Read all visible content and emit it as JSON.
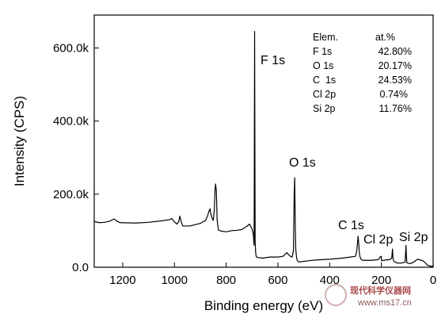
{
  "chart_data": {
    "type": "line",
    "title": "",
    "xlabel": "Binding energy (eV)",
    "ylabel": "Intensity (CPS)",
    "xlim": [
      1310,
      0
    ],
    "ylim": [
      0,
      690000
    ],
    "x_reversed": true,
    "x_ticks": [
      1200,
      1000,
      800,
      600,
      400,
      200,
      0
    ],
    "y_ticks": [
      0,
      200000,
      400000,
      600000
    ],
    "y_tick_labels": [
      "0.0",
      "200.0k",
      "400.0k",
      "600.0k"
    ],
    "grid": false,
    "series": [
      {
        "x": [
          1310,
          1290,
          1270,
          1250,
          1240,
          1232,
          1225,
          1210,
          1150,
          1100,
          1050,
          1020,
          1010,
          1004,
          1000,
          990,
          983,
          979,
          975,
          968,
          940,
          900,
          880,
          872,
          866,
          862,
          860,
          855,
          850,
          846,
          843,
          841,
          838,
          835,
          830,
          820,
          800,
          780,
          760,
          740,
          720,
          710,
          700,
          695,
          692,
          690,
          688,
          686,
          684,
          680,
          660,
          630,
          600,
          580,
          565,
          560,
          552,
          545,
          540,
          537,
          535,
          533,
          531,
          528,
          525,
          520,
          510,
          500,
          480,
          450,
          400,
          350,
          320,
          300,
          295,
          290,
          287,
          285,
          283,
          281,
          278,
          275,
          270,
          260,
          240,
          220,
          210,
          205,
          200,
          200,
          199,
          198,
          196,
          193,
          190,
          185,
          175,
          165,
          160,
          157,
          155,
          153,
          150,
          145,
          140,
          130,
          120,
          108,
          105,
          102,
          100,
          98,
          95,
          90,
          80,
          60,
          40,
          30,
          27,
          25,
          22,
          20,
          15,
          10,
          5,
          0
        ],
        "y": [
          125000,
          122000,
          123000,
          126000,
          130000,
          132000,
          127000,
          122000,
          121000,
          123000,
          127000,
          130000,
          133000,
          128000,
          124000,
          118000,
          125000,
          140000,
          128000,
          113000,
          113000,
          120000,
          128000,
          140000,
          155000,
          160000,
          148000,
          135000,
          128000,
          155000,
          210000,
          228000,
          210000,
          130000,
          102000,
          99000,
          97000,
          100000,
          101000,
          103000,
          112000,
          118000,
          105000,
          90000,
          60000,
          645000,
          70000,
          40000,
          30000,
          27000,
          25000,
          28000,
          28000,
          30000,
          40000,
          35000,
          30000,
          28000,
          45000,
          200000,
          245000,
          120000,
          50000,
          28000,
          18000,
          15000,
          15000,
          16000,
          18000,
          20000,
          22000,
          25000,
          28000,
          30000,
          45000,
          85000,
          60000,
          38000,
          30000,
          25000,
          22000,
          20000,
          19000,
          19000,
          19000,
          20000,
          22000,
          28000,
          30000,
          18000,
          18000,
          18000,
          18000,
          19000,
          19000,
          20000,
          20000,
          22000,
          25000,
          50000,
          25000,
          18000,
          15000,
          14000,
          12000,
          11000,
          12000,
          14000,
          60000,
          15000,
          12000,
          11000,
          11000,
          10000,
          12000,
          22000,
          18000,
          12000,
          10000,
          8000,
          6000,
          5000,
          4000,
          3000,
          3000,
          2000
        ]
      }
    ],
    "peak_labels": [
      {
        "text": "F 1s"
      },
      {
        "text": "O 1s"
      },
      {
        "text": "C 1s"
      },
      {
        "text": "Cl 2p"
      },
      {
        "text": "Si 2p"
      }
    ],
    "composition_table": {
      "header": [
        "Elem.",
        "at.%"
      ],
      "rows": [
        [
          "F 1s",
          "42.80%"
        ],
        [
          "O 1s",
          "20.17%"
        ],
        [
          "C  1s",
          "24.53%"
        ],
        [
          "Cl 2p",
          "0.74%"
        ],
        [
          "Si 2p",
          "11.76%"
        ]
      ]
    }
  },
  "watermark": {
    "cn_text": "现代科学仪器网",
    "url_text": "www.ms17.cn"
  }
}
